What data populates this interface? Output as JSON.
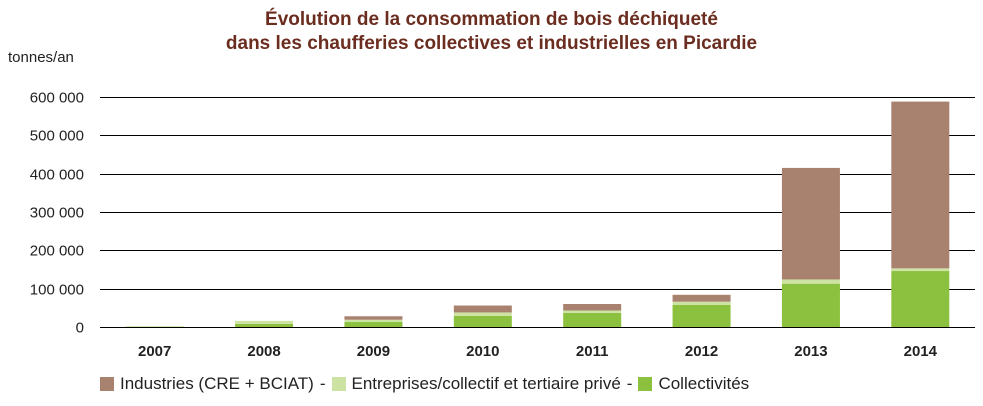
{
  "title_line1": "Évolution de la consommation de bois déchiqueté",
  "title_line2": "dans les chaufferies collectives et industrielles en Picardie",
  "unit_label": "tonnes/an",
  "colors": {
    "industries": "#a9826f",
    "entreprises": "#cde3a4",
    "collectivites": "#8cc03f",
    "grid": "#000000",
    "title": "#6b2d1f"
  },
  "legend": {
    "industries": "Industries (CRE + BCIAT)",
    "entreprises": "Entreprises/collectif et tertiaire privé",
    "collectivites": "Collectivités",
    "separator": "-"
  },
  "chart_data": {
    "type": "bar",
    "stacked": true,
    "categories": [
      "2007",
      "2008",
      "2009",
      "2010",
      "2011",
      "2012",
      "2013",
      "2014"
    ],
    "series": [
      {
        "name": "Collectivités",
        "values": [
          1000,
          8000,
          13000,
          29000,
          37000,
          58000,
          113000,
          146000
        ]
      },
      {
        "name": "Entreprises/collectif et tertiaire privé",
        "values": [
          500,
          8000,
          6000,
          9000,
          6000,
          8000,
          11000,
          7000
        ]
      },
      {
        "name": "Industries (CRE + BCIAT)",
        "values": [
          0,
          0,
          9000,
          18000,
          17000,
          18000,
          291000,
          435000
        ]
      }
    ],
    "ylim": [
      0,
      600000
    ],
    "yticks": [
      0,
      100000,
      200000,
      300000,
      400000,
      500000,
      600000
    ],
    "ytick_labels": [
      "0",
      "100 000",
      "200 000",
      "300 000",
      "400 000",
      "500 000",
      "600 000"
    ],
    "ylabel": "tonnes/an",
    "xlabel": "",
    "grid": true,
    "legend_position": "bottom"
  }
}
